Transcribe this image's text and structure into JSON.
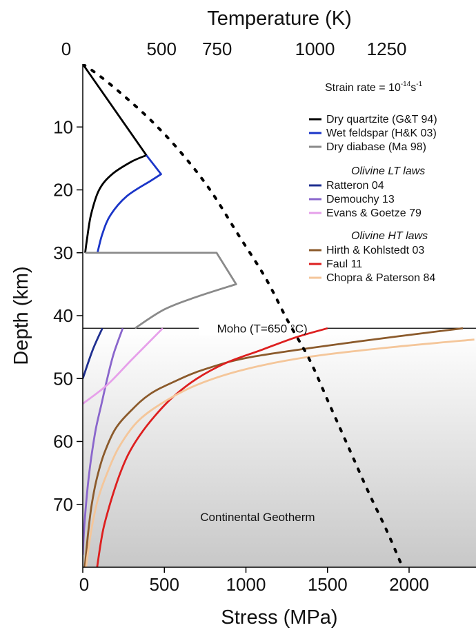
{
  "chart_data": {
    "type": "line",
    "title": "",
    "xlabel": "Stress (MPa)",
    "ylabel": "Depth (km)",
    "x2label": "Temperature (K)",
    "xlim": [
      0,
      2400
    ],
    "ylim": [
      0,
      80
    ],
    "y_inverted": true,
    "x_ticks": [
      0,
      500,
      1000,
      1500,
      2000
    ],
    "y_ticks": [
      10,
      20,
      30,
      40,
      50,
      60,
      70
    ],
    "x2_ticks": [
      {
        "label": "0",
        "stress": 0
      },
      {
        "label": "500",
        "stress": 390
      },
      {
        "label": "750",
        "stress": 730
      },
      {
        "label": "1000",
        "stress": 1330
      },
      {
        "label": "1250",
        "stress": 1770
      }
    ],
    "grid": false,
    "legend_position": "top-right",
    "strain_rate": {
      "prefix": "Strain rate = 10",
      "exponent": "-14",
      "mid": "s",
      "unit_exponent": "-1"
    },
    "moho": {
      "depth": 42,
      "label": "Moho (T=650 °C)",
      "label_stress": 1100
    },
    "geotherm": {
      "label": "Continental Geotherm",
      "label_stress": 720,
      "label_depth": 72
    },
    "legend_groups": [
      {
        "header": "",
        "items": [
          0,
          1,
          2
        ]
      },
      {
        "header": "Olivine LT laws",
        "items": [
          3,
          4,
          5
        ]
      },
      {
        "header": "Olivine HT laws",
        "items": [
          6,
          7,
          8
        ]
      }
    ],
    "series": [
      {
        "name": "Dry quartzite (G&T 94)",
        "color": "#000000",
        "points": [
          [
            0,
            0
          ],
          [
            390,
            14.5
          ],
          [
            300,
            15.5
          ],
          [
            180,
            17.5
          ],
          [
            100,
            20
          ],
          [
            50,
            24
          ],
          [
            25,
            28
          ],
          [
            15,
            30
          ]
        ]
      },
      {
        "name": "Wet feldspar (H&K 03)",
        "color": "#1a35c8",
        "points": [
          [
            390,
            14.5
          ],
          [
            480,
            17.5
          ],
          [
            420,
            18.5
          ],
          [
            270,
            21
          ],
          [
            170,
            24
          ],
          [
            120,
            27
          ],
          [
            90,
            30
          ]
        ]
      },
      {
        "name": "Dry diabase (Ma 98)",
        "color": "#8a8a8a",
        "points": [
          [
            15,
            30
          ],
          [
            820,
            30
          ],
          [
            940,
            35
          ],
          [
            700,
            37
          ],
          [
            500,
            39
          ],
          [
            320,
            42
          ]
        ]
      },
      {
        "name": "Ratteron 04",
        "color": "#1f2f90",
        "points": [
          [
            120,
            42
          ],
          [
            60,
            45.5
          ],
          [
            0,
            50
          ]
        ]
      },
      {
        "name": "Demouchy 13",
        "color": "#8a66cc",
        "points": [
          [
            245,
            42
          ],
          [
            190,
            46
          ],
          [
            150,
            50
          ],
          [
            115,
            54
          ],
          [
            80,
            58
          ],
          [
            55,
            62
          ],
          [
            35,
            66
          ],
          [
            20,
            70
          ],
          [
            8,
            74
          ],
          [
            0,
            78
          ]
        ]
      },
      {
        "name": "Evans & Goetze 79",
        "color": "#e6a0ea",
        "points": [
          [
            490,
            42
          ],
          [
            300,
            47
          ],
          [
            150,
            51
          ],
          [
            0,
            54
          ]
        ]
      },
      {
        "name": "Hirth & Kohlstedt 03",
        "color": "#8b5a2b",
        "points": [
          [
            2330,
            42
          ],
          [
            1720,
            44
          ],
          [
            1050,
            46.5
          ],
          [
            750,
            48.5
          ],
          [
            560,
            50.5
          ],
          [
            410,
            52.5
          ],
          [
            300,
            55
          ],
          [
            200,
            58
          ],
          [
            130,
            62
          ],
          [
            85,
            66
          ],
          [
            55,
            70
          ],
          [
            35,
            74
          ],
          [
            20,
            78
          ],
          [
            12,
            80
          ]
        ]
      },
      {
        "name": "Faul 11",
        "color": "#dd1f1f",
        "points": [
          [
            1500,
            42
          ],
          [
            1300,
            43.5
          ],
          [
            1090,
            45.5
          ],
          [
            880,
            47.5
          ],
          [
            700,
            50
          ],
          [
            550,
            53
          ],
          [
            440,
            56
          ],
          [
            350,
            59
          ],
          [
            280,
            62
          ],
          [
            230,
            65
          ],
          [
            190,
            68
          ],
          [
            155,
            71
          ],
          [
            125,
            74
          ],
          [
            105,
            77
          ],
          [
            88,
            80
          ]
        ]
      },
      {
        "name": "Chopra & Paterson 84",
        "color": "#f4c69a",
        "points": [
          [
            2400,
            43.8
          ],
          [
            1900,
            45
          ],
          [
            1400,
            46.5
          ],
          [
            1000,
            48.5
          ],
          [
            700,
            51
          ],
          [
            480,
            54
          ],
          [
            330,
            57
          ],
          [
            220,
            61
          ],
          [
            150,
            65
          ],
          [
            95,
            69
          ],
          [
            60,
            73
          ],
          [
            35,
            77
          ],
          [
            20,
            80
          ]
        ]
      }
    ],
    "geotherm_points": [
      [
        0,
        0
      ],
      [
        110,
        2
      ],
      [
        250,
        5
      ],
      [
        420,
        9
      ],
      [
        600,
        14
      ],
      [
        780,
        20
      ],
      [
        950,
        27
      ],
      [
        1120,
        34
      ],
      [
        1260,
        41
      ],
      [
        1390,
        47
      ],
      [
        1510,
        54
      ],
      [
        1630,
        61
      ],
      [
        1750,
        68
      ],
      [
        1860,
        74
      ],
      [
        1960,
        80
      ]
    ]
  }
}
